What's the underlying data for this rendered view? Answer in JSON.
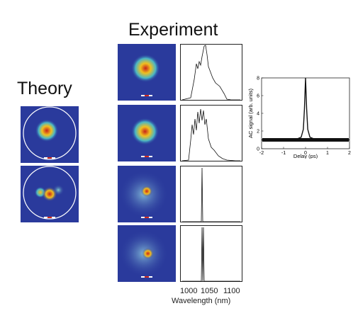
{
  "titles": {
    "experiment": "Experiment",
    "theory": "Theory"
  },
  "spectra_axis": {
    "xlabel": "Wavelength (nm)",
    "ticks": [
      "1000",
      "1050",
      "1100"
    ]
  },
  "chart_data": {
    "type": "line",
    "xlabel": "Delay (ps)",
    "ylabel": "AC signal (arb. units)",
    "xlim": [
      -2,
      2
    ],
    "ylim": [
      0,
      8
    ],
    "xticks": [
      "-2",
      "-1",
      "0",
      "1",
      "2"
    ],
    "yticks": [
      "0",
      "2",
      "4",
      "6",
      "8"
    ],
    "series": [
      {
        "x": [
          -2,
          -1.5,
          -1,
          -0.5,
          -0.2,
          -0.1,
          -0.05,
          0,
          0.05,
          0.1,
          0.2,
          0.5,
          1,
          1.5,
          2
        ],
        "values": [
          1,
          1,
          1,
          1,
          1.3,
          2.2,
          4.5,
          8,
          4.5,
          2.2,
          1.3,
          1,
          1,
          1,
          1
        ]
      }
    ]
  },
  "colors": {
    "accent_line": "#111111",
    "mode_background": "#2a3a9c",
    "mode_peak": "#d42a1c"
  }
}
